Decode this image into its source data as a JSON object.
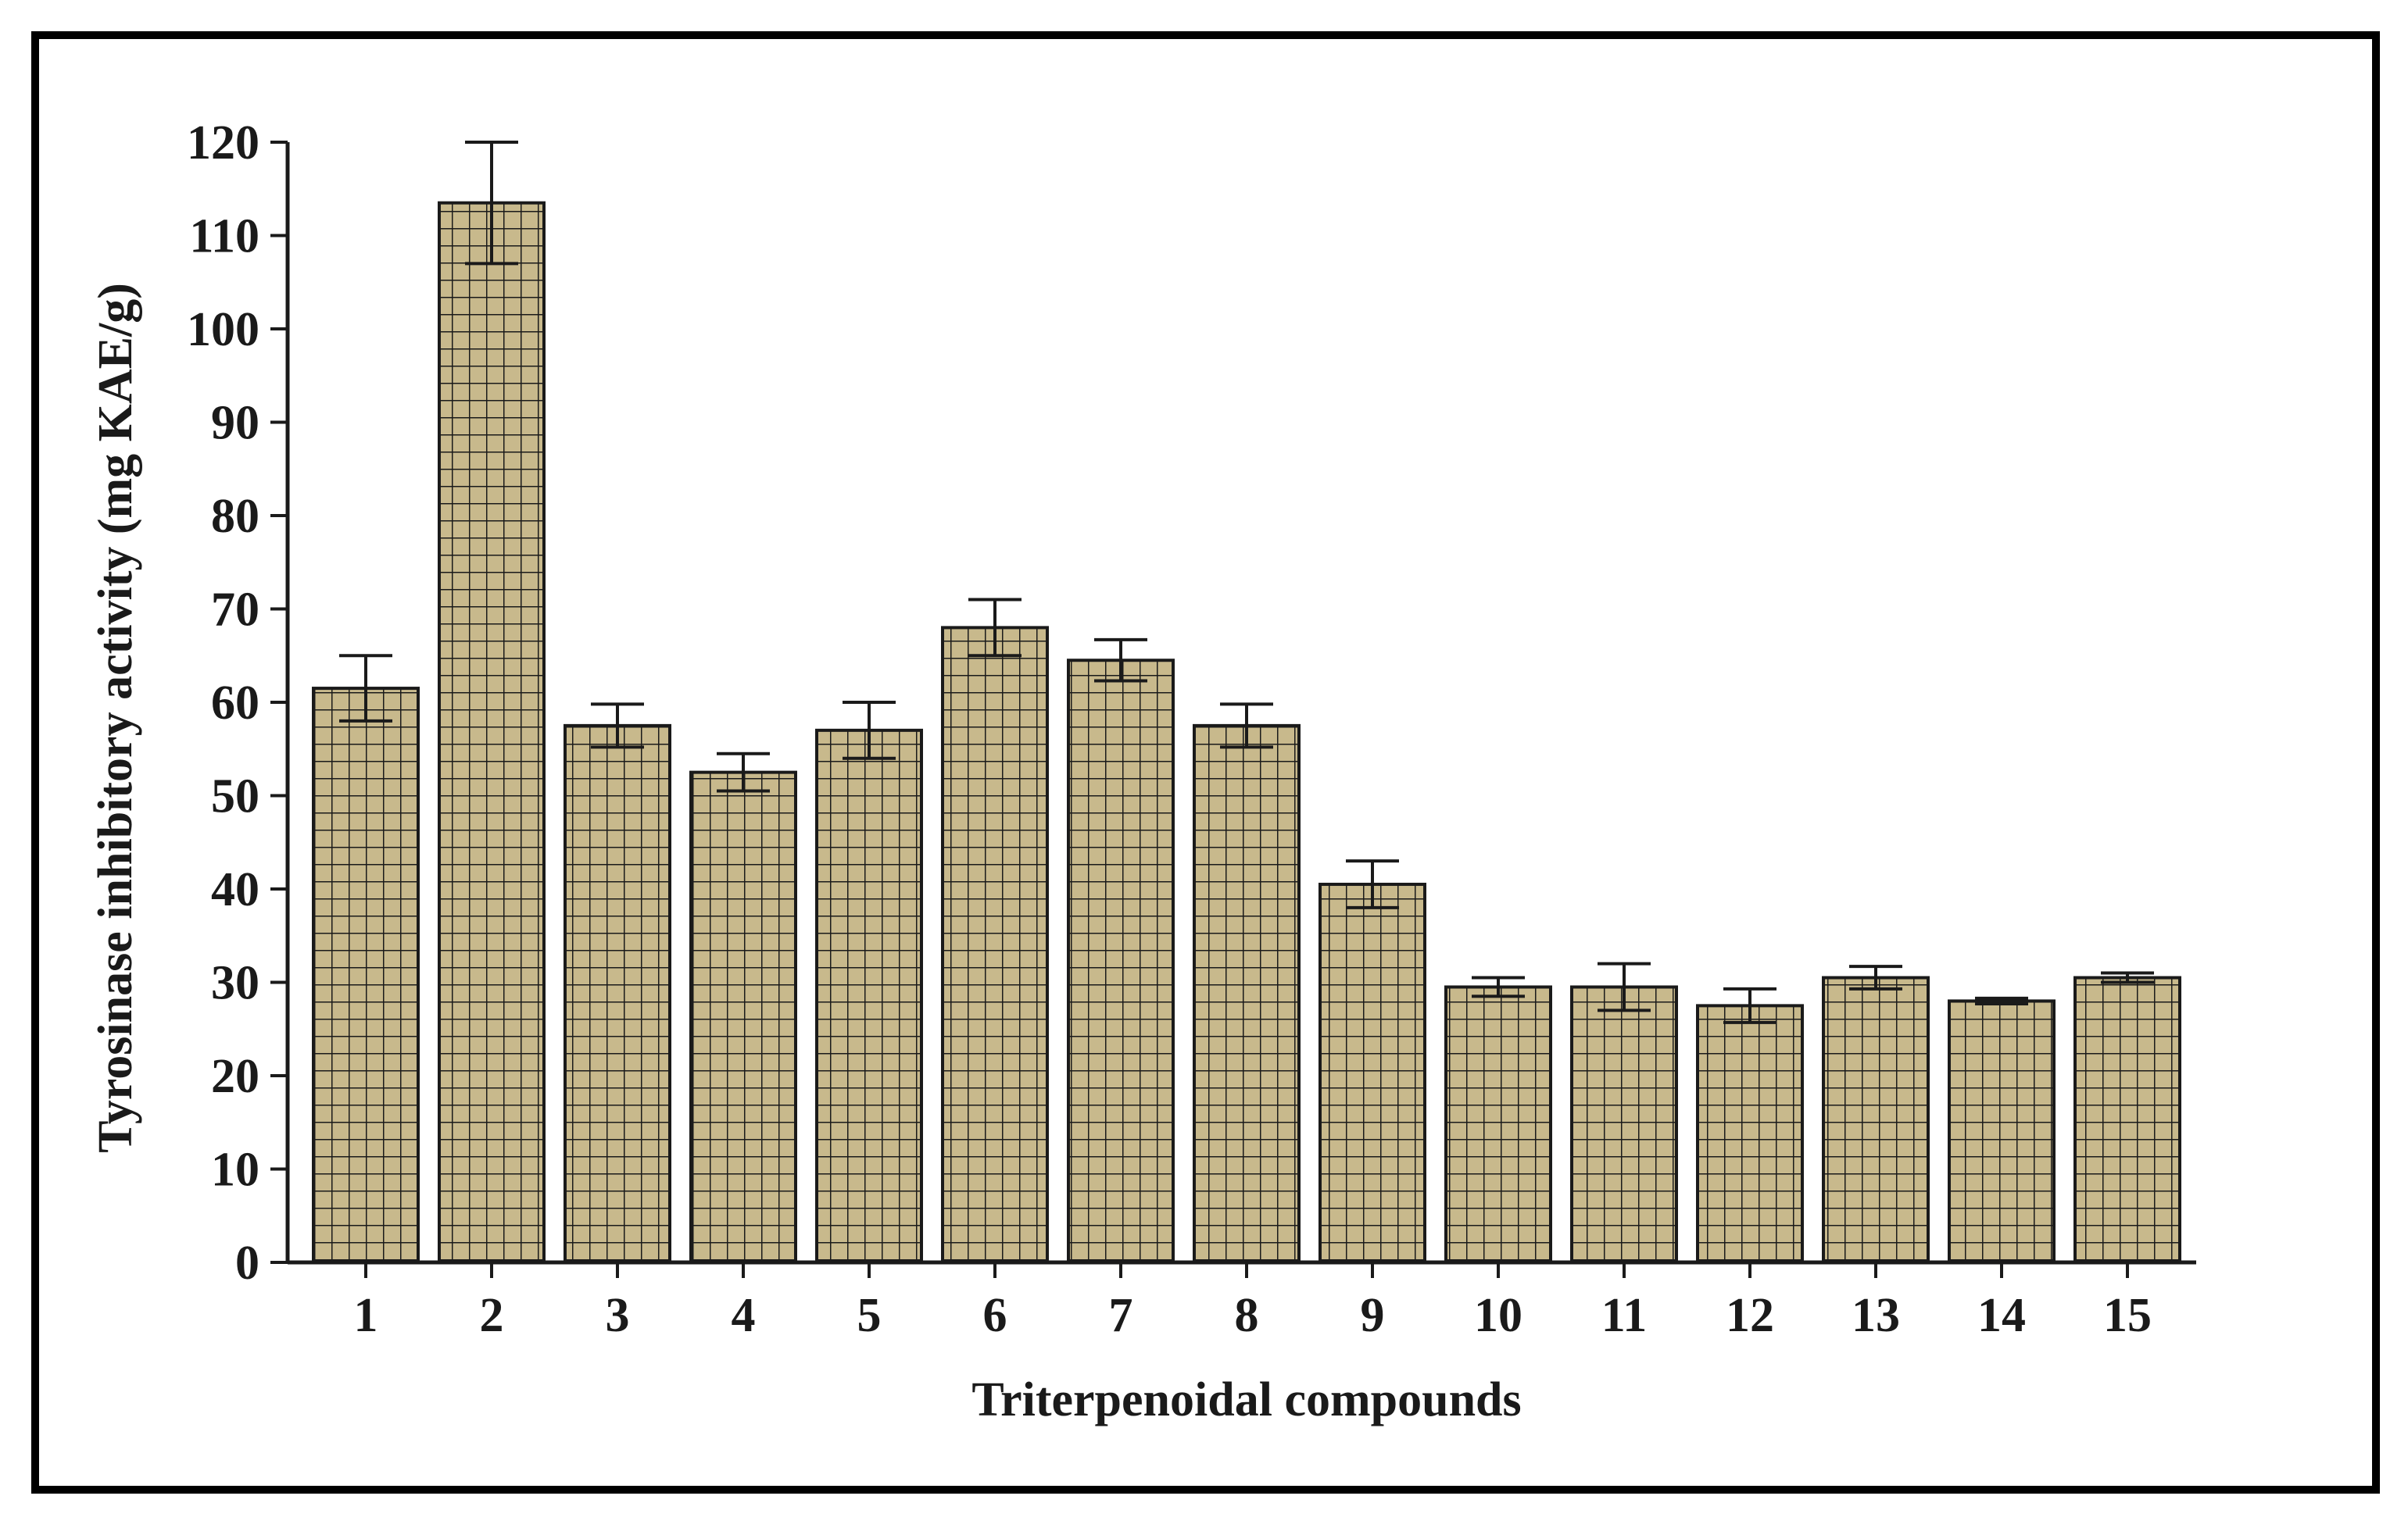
{
  "chart_data": {
    "type": "bar",
    "title": "",
    "xlabel": "Triterpenoidal compounds",
    "ylabel": "Tyrosinase  inhibitory activity (mg KAE/g)",
    "categories": [
      "1",
      "2",
      "3",
      "4",
      "5",
      "6",
      "7",
      "8",
      "9",
      "10",
      "11",
      "12",
      "13",
      "14",
      "15"
    ],
    "values": [
      61.5,
      113.5,
      57.5,
      52.5,
      57,
      68,
      64.5,
      57.5,
      40.5,
      29.5,
      29.5,
      27.5,
      30.5,
      28,
      30.5
    ],
    "errors": [
      3.5,
      6.5,
      2.3,
      2.0,
      3.0,
      3.0,
      2.2,
      2.3,
      2.5,
      1.0,
      2.5,
      1.8,
      1.2,
      0.3,
      0.5
    ],
    "ylim": [
      0,
      120
    ],
    "yticks": [
      0,
      10,
      20,
      30,
      40,
      50,
      60,
      70,
      80,
      90,
      100,
      110,
      120
    ],
    "grid": false,
    "legend": "none",
    "bar_color": "#c8b98c",
    "pattern_color": "#1a1a1a",
    "edge_color": "#1a1a1a"
  }
}
